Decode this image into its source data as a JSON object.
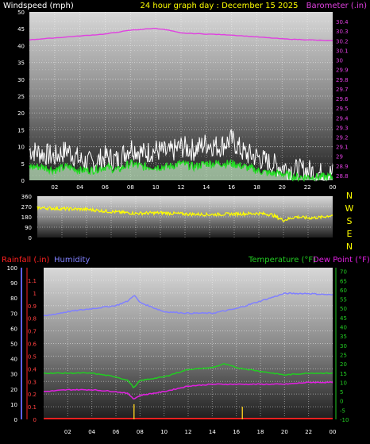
{
  "header": {
    "left_label": "Windspeed (mph)",
    "center_label": "24 hour graph day : December 15 2025",
    "right_label": "Barometer (.in)"
  },
  "colors": {
    "wind_gust": "#ffffff",
    "wind_avg": "#22dd22",
    "wind_fill": "#c8f0c8",
    "barometer": "#e040e0",
    "direction": "#ffff00",
    "humidity": "#8080ff",
    "temperature": "#22cc22",
    "dewpoint": "#e020e0",
    "rainfall": "#ff2020",
    "rain_bar": "#e8c020"
  },
  "chart_data": [
    {
      "type": "line",
      "panel": "wind-barometer",
      "title": "24 hour graph day : December 15 2025",
      "x_ticks": [
        "02",
        "04",
        "06",
        "08",
        "10",
        "12",
        "14",
        "16",
        "18",
        "20",
        "22",
        "00"
      ],
      "xlim": [
        0,
        24
      ],
      "y_left": {
        "label": "Windspeed (mph)",
        "ylim": [
          0,
          50
        ],
        "ticks": [
          0,
          5,
          10,
          15,
          20,
          25,
          30,
          35,
          40,
          45,
          50
        ]
      },
      "y_right": {
        "label": "Barometer (.in)",
        "ylim": [
          28.75,
          30.5
        ],
        "ticks": [
          "28.8",
          "28.9",
          "29",
          "29.1",
          "29.2",
          "29.3",
          "29.4",
          "29.5",
          "29.6",
          "29.7",
          "29.8",
          "29.9",
          "30",
          "30.1",
          "30.2",
          "30.3",
          "30.4"
        ]
      },
      "series": [
        {
          "name": "Barometer",
          "axis": "right",
          "x": [
            0,
            2,
            4,
            6,
            8,
            9,
            10,
            11,
            12,
            14,
            16,
            18,
            20,
            22,
            24
          ],
          "y": [
            30.21,
            30.23,
            30.25,
            30.27,
            30.31,
            30.32,
            30.33,
            30.31,
            30.28,
            30.27,
            30.26,
            30.24,
            30.22,
            30.21,
            30.2
          ]
        },
        {
          "name": "Wind Gust",
          "axis": "left",
          "x": [
            0,
            1,
            2,
            3,
            4,
            5,
            6,
            7,
            8,
            9,
            10,
            11,
            12,
            13,
            14,
            15,
            16,
            17,
            18,
            19,
            20,
            21,
            22,
            23,
            24
          ],
          "y": [
            9,
            8,
            7,
            9,
            6,
            5,
            7,
            6,
            10,
            8,
            9,
            8,
            10,
            9,
            11,
            10,
            12,
            8,
            7,
            5,
            4,
            3,
            3,
            2,
            2
          ]
        },
        {
          "name": "Wind Speed",
          "axis": "left",
          "x": [
            0,
            1,
            2,
            3,
            4,
            5,
            6,
            7,
            8,
            9,
            10,
            11,
            12,
            13,
            14,
            15,
            16,
            17,
            18,
            19,
            20,
            21,
            22,
            23,
            24
          ],
          "y": [
            4,
            4,
            3,
            4,
            3,
            3,
            4,
            3,
            5,
            4,
            4,
            4,
            5,
            4,
            5,
            5,
            5,
            4,
            3,
            2,
            2,
            1,
            1,
            1,
            1
          ]
        }
      ]
    },
    {
      "type": "line",
      "panel": "wind-direction",
      "x_ticks": [
        "02",
        "04",
        "06",
        "08",
        "10",
        "12",
        "14",
        "16",
        "18",
        "20",
        "22",
        "00"
      ],
      "xlim": [
        0,
        24
      ],
      "y_left": {
        "ylim": [
          0,
          360
        ],
        "ticks": [
          "0",
          "90",
          "180",
          "270",
          "360"
        ]
      },
      "y_right": {
        "ticks": [
          "N",
          "W",
          "S",
          "E",
          "N"
        ]
      },
      "series": [
        {
          "name": "Wind Direction",
          "x": [
            0,
            2,
            4,
            6,
            8,
            10,
            12,
            14,
            16,
            18,
            19,
            20,
            21,
            22,
            23,
            24
          ],
          "y": [
            260,
            250,
            245,
            225,
            210,
            215,
            205,
            200,
            205,
            210,
            200,
            150,
            180,
            170,
            175,
            195
          ]
        }
      ]
    },
    {
      "type": "line",
      "panel": "temperature-humidity-rain",
      "x_ticks": [
        "02",
        "04",
        "06",
        "08",
        "10",
        "12",
        "14",
        "16",
        "18",
        "20",
        "22",
        "00"
      ],
      "xlim": [
        0,
        24
      ],
      "labels": {
        "rainfall": "Rainfall (.in)",
        "humidity": "Humidity",
        "temperature": "Temperature (°F)",
        "dewpoint": "Dew Point (°F)"
      },
      "y_humidity": {
        "ylim": [
          0,
          100
        ],
        "ticks": [
          "0",
          "10",
          "20",
          "30",
          "40",
          "50",
          "60",
          "70",
          "80",
          "90",
          "100"
        ]
      },
      "y_rain": {
        "ylim": [
          0,
          1.2
        ],
        "ticks": [
          "0",
          "0.1",
          "0.2",
          "0.3",
          "0.4",
          "0.5",
          "0.6",
          "0.7",
          "0.8",
          "0.9",
          "1",
          "1.1"
        ]
      },
      "y_temp": {
        "ylim": [
          -10,
          72
        ],
        "ticks": [
          "-10",
          "-5",
          "0",
          "5",
          "10",
          "15",
          "20",
          "25",
          "30",
          "35",
          "40",
          "45",
          "50",
          "55",
          "60",
          "65",
          "70"
        ]
      },
      "series": [
        {
          "name": "Humidity",
          "axis": "humidity",
          "x": [
            0,
            2,
            4,
            6,
            7,
            7.5,
            8,
            10,
            12,
            14,
            16,
            18,
            20,
            22,
            24
          ],
          "y": [
            68,
            71,
            73,
            75,
            78,
            82,
            77,
            71,
            70,
            70,
            73,
            78,
            83,
            83,
            82
          ]
        },
        {
          "name": "Temperature",
          "axis": "temp",
          "x": [
            0,
            2,
            4,
            6,
            7,
            7.5,
            8,
            10,
            12,
            14,
            15,
            16,
            18,
            20,
            22,
            24
          ],
          "y": [
            15,
            15,
            15,
            13,
            11,
            7,
            11,
            13,
            17,
            18,
            20,
            18,
            16,
            14,
            15,
            15
          ]
        },
        {
          "name": "Dew Point",
          "axis": "temp",
          "x": [
            0,
            2,
            4,
            6,
            7,
            7.5,
            8,
            10,
            12,
            14,
            16,
            18,
            20,
            22,
            24
          ],
          "y": [
            5,
            6,
            6,
            5,
            4,
            1,
            3,
            5,
            8,
            9,
            9,
            9,
            9,
            10,
            10
          ]
        },
        {
          "name": "Rainfall",
          "axis": "rain",
          "x": [
            0,
            24
          ],
          "y": [
            0,
            0
          ]
        }
      ],
      "rain_marks": [
        {
          "x": 7.5,
          "y": 0.12
        },
        {
          "x": 16.5,
          "y": 0.1
        }
      ]
    }
  ]
}
